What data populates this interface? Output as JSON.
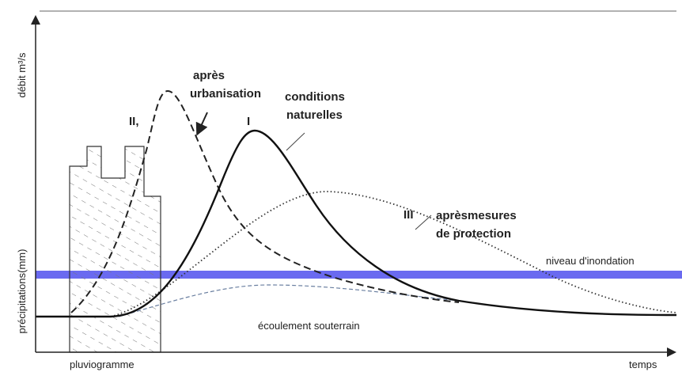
{
  "y_axis": {
    "top_label": "débit m³/s",
    "bottom_label": "précipitations(mm)"
  },
  "x_axis": {
    "label": "temps"
  },
  "hyetograph": {
    "label": "pluviogramme"
  },
  "curves": [
    {
      "numeral": "I",
      "label_lines": [
        "conditions",
        "naturelles"
      ]
    },
    {
      "numeral": "II,",
      "label_lines": [
        "après",
        "urbanisation"
      ]
    },
    {
      "numeral": "III",
      "label_lines": [
        "aprèsmesures",
        "de protection"
      ]
    }
  ],
  "flood_level": {
    "label": "niveau d'inondation"
  },
  "baseflow": {
    "label": "écoulement souterrain"
  }
}
